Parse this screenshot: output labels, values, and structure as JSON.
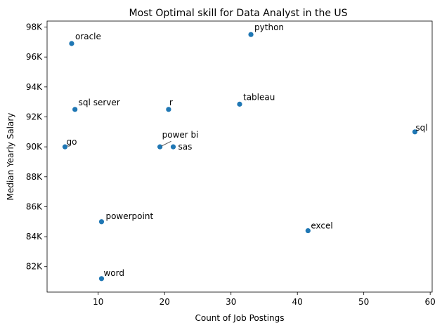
{
  "chart_data": {
    "type": "scatter",
    "title": "Most Optimal skill for Data Analyst in the US",
    "xlabel": "Count of Job Postings",
    "ylabel": "Median Yearly Salary",
    "xlim": [
      2.3,
      60.3
    ],
    "ylim": [
      80300,
      98400
    ],
    "xticks": [
      10,
      20,
      30,
      40,
      50,
      60
    ],
    "xtick_labels": [
      "10",
      "20",
      "30",
      "40",
      "50",
      "60"
    ],
    "yticks": [
      82000,
      84000,
      86000,
      88000,
      90000,
      92000,
      94000,
      96000,
      98000
    ],
    "ytick_labels": [
      "82K",
      "84K",
      "86K",
      "88K",
      "90K",
      "92K",
      "94K",
      "96K",
      "98K"
    ],
    "grid": false,
    "marker_color": "#1f77b4",
    "points": [
      {
        "label": "python",
        "x": 33,
        "y": 97500
      },
      {
        "label": "oracle",
        "x": 6,
        "y": 96900
      },
      {
        "label": "tableau",
        "x": 31.3,
        "y": 92850
      },
      {
        "label": "sql server",
        "x": 6.5,
        "y": 92500
      },
      {
        "label": "r",
        "x": 20.6,
        "y": 92500
      },
      {
        "label": "sql",
        "x": 57.7,
        "y": 91000
      },
      {
        "label": "go",
        "x": 5,
        "y": 90000
      },
      {
        "label": "power bi",
        "x": 19.3,
        "y": 90000
      },
      {
        "label": "sas",
        "x": 21.3,
        "y": 90000
      },
      {
        "label": "powerpoint",
        "x": 10.5,
        "y": 85000
      },
      {
        "label": "excel",
        "x": 41.6,
        "y": 84400
      },
      {
        "label": "word",
        "x": 10.5,
        "y": 81200
      }
    ]
  }
}
